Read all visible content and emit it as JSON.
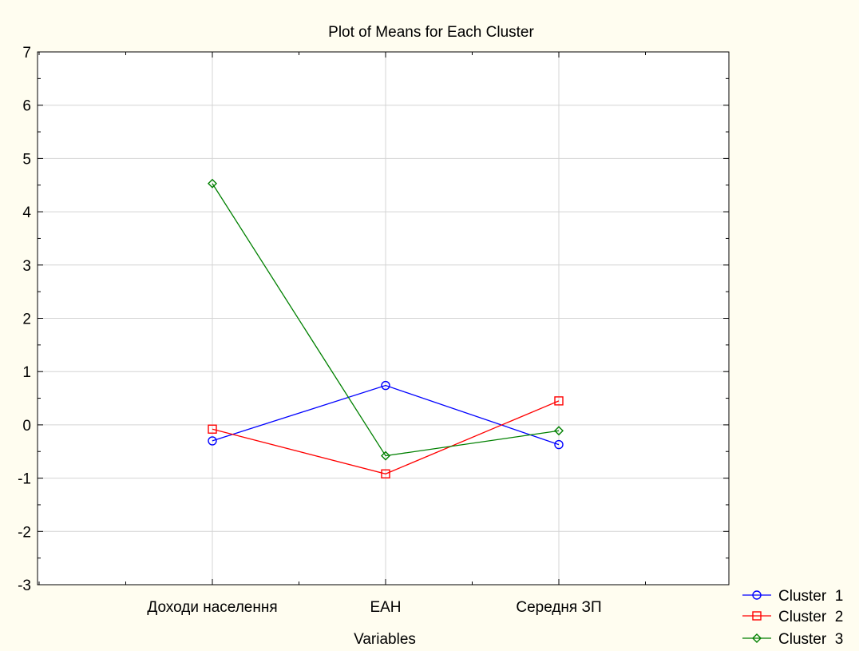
{
  "chart_data": {
    "type": "line",
    "title": "Plot of Means for Each Cluster",
    "xlabel": "Variables",
    "ylabel": "",
    "categories": [
      "Доходи населення",
      "ЕАН",
      "Середня ЗП"
    ],
    "ylim": [
      -3,
      7
    ],
    "yticks": [
      -3,
      -2,
      -1,
      0,
      1,
      2,
      3,
      4,
      5,
      6,
      7
    ],
    "grid": true,
    "legend_position": "bottom-right",
    "series": [
      {
        "name": "Cluster  1",
        "color": "#0000ff",
        "marker": "circle",
        "values": [
          -0.3,
          0.74,
          -0.37
        ]
      },
      {
        "name": "Cluster  2",
        "color": "#ff0000",
        "marker": "square",
        "values": [
          -0.08,
          -0.92,
          0.45
        ]
      },
      {
        "name": "Cluster  3",
        "color": "#008000",
        "marker": "diamond",
        "values": [
          4.53,
          -0.58,
          -0.11
        ]
      }
    ]
  }
}
